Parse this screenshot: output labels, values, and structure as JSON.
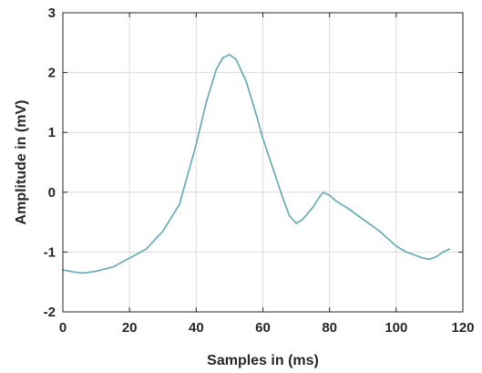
{
  "chart_data": {
    "type": "line",
    "title": "",
    "xlabel": "Samples in (ms)",
    "ylabel": "Amplitude in (mV)",
    "xlim": [
      0,
      120
    ],
    "ylim": [
      -2,
      3
    ],
    "xticks": [
      0,
      20,
      40,
      60,
      80,
      100,
      120
    ],
    "yticks": [
      -2,
      -1,
      0,
      1,
      2,
      3
    ],
    "grid": true,
    "colors": {
      "series": "#5fa8b8",
      "axis": "#262626",
      "grid": "#dcdcdc"
    },
    "series": [
      {
        "x": [
          0,
          3,
          6,
          10,
          15,
          20,
          25,
          30,
          35,
          40,
          43,
          46,
          48,
          50,
          52,
          55,
          58,
          60,
          63,
          66,
          68,
          70,
          72,
          75,
          77,
          78,
          80,
          82,
          85,
          90,
          95,
          100,
          103,
          106,
          108,
          110,
          112,
          114,
          116
        ],
        "y": [
          -1.3,
          -1.33,
          -1.35,
          -1.32,
          -1.25,
          -1.1,
          -0.95,
          -0.65,
          -0.2,
          0.8,
          1.5,
          2.05,
          2.25,
          2.3,
          2.22,
          1.85,
          1.3,
          0.9,
          0.4,
          -0.1,
          -0.4,
          -0.52,
          -0.45,
          -0.25,
          -0.08,
          0.0,
          -0.05,
          -0.15,
          -0.25,
          -0.45,
          -0.65,
          -0.9,
          -1.0,
          -1.06,
          -1.1,
          -1.12,
          -1.08,
          -1.0,
          -0.95
        ]
      }
    ]
  }
}
